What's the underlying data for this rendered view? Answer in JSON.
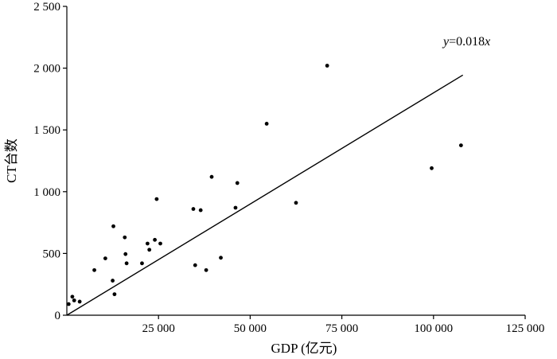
{
  "chart_data": {
    "type": "scatter",
    "xlabel": "GDP (亿元)",
    "ylabel": "CT台数",
    "xlim": [
      0,
      125000
    ],
    "ylim": [
      0,
      2500
    ],
    "x_ticks": [
      {
        "value": 25000,
        "label": "25 000"
      },
      {
        "value": 50000,
        "label": "50 000"
      },
      {
        "value": 75000,
        "label": "75 000"
      },
      {
        "value": 100000,
        "label": "100 000"
      },
      {
        "value": 125000,
        "label": "125 000"
      }
    ],
    "y_ticks": [
      {
        "value": 0,
        "label": "0"
      },
      {
        "value": 500,
        "label": "500"
      },
      {
        "value": 1000,
        "label": "1 000"
      },
      {
        "value": 1500,
        "label": "1 500"
      },
      {
        "value": 2000,
        "label": "2 000"
      },
      {
        "value": 2500,
        "label": "2 500"
      }
    ],
    "points": [
      {
        "x": 500,
        "y": 90
      },
      {
        "x": 1500,
        "y": 150
      },
      {
        "x": 2000,
        "y": 120
      },
      {
        "x": 3500,
        "y": 110
      },
      {
        "x": 7500,
        "y": 365
      },
      {
        "x": 10500,
        "y": 460
      },
      {
        "x": 12500,
        "y": 280
      },
      {
        "x": 12700,
        "y": 720
      },
      {
        "x": 13000,
        "y": 170
      },
      {
        "x": 15800,
        "y": 630
      },
      {
        "x": 16000,
        "y": 495
      },
      {
        "x": 16300,
        "y": 420
      },
      {
        "x": 20500,
        "y": 420
      },
      {
        "x": 22000,
        "y": 580
      },
      {
        "x": 22500,
        "y": 530
      },
      {
        "x": 24000,
        "y": 610
      },
      {
        "x": 24500,
        "y": 940
      },
      {
        "x": 25500,
        "y": 580
      },
      {
        "x": 34500,
        "y": 860
      },
      {
        "x": 35000,
        "y": 405
      },
      {
        "x": 36500,
        "y": 850
      },
      {
        "x": 38000,
        "y": 365
      },
      {
        "x": 39500,
        "y": 1120
      },
      {
        "x": 42000,
        "y": 465
      },
      {
        "x": 46000,
        "y": 870
      },
      {
        "x": 46500,
        "y": 1070
      },
      {
        "x": 54500,
        "y": 1550
      },
      {
        "x": 62500,
        "y": 910
      },
      {
        "x": 71000,
        "y": 2020
      },
      {
        "x": 99500,
        "y": 1190
      },
      {
        "x": 107500,
        "y": 1375
      }
    ],
    "fit": {
      "equation_var": "y",
      "equation_rest": "=0.018",
      "equation_x": "x",
      "slope": 0.018,
      "x_range": [
        0,
        108000
      ]
    }
  }
}
